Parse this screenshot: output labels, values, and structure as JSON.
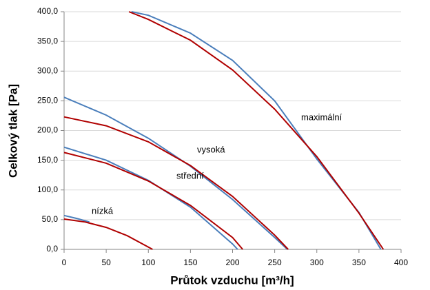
{
  "chart_data": {
    "type": "line",
    "xlabel": "Průtok vzduchu [m³/h]",
    "ylabel": "Celkový tlak [Pa]",
    "annotations": [
      "maximální",
      "vysoká",
      "střední",
      "nízká"
    ],
    "xlim": [
      0,
      400
    ],
    "xticks": [
      0,
      50,
      100,
      150,
      200,
      250,
      300,
      350,
      400
    ],
    "ylim": [
      0,
      400
    ],
    "yticks": [
      {
        "value": 0,
        "label": "0,0"
      },
      {
        "value": 50,
        "label": "50,0"
      },
      {
        "value": 100,
        "label": "100,0"
      },
      {
        "value": 150,
        "label": "150,0"
      },
      {
        "value": 200,
        "label": "200,0"
      },
      {
        "value": 250,
        "label": "250,0"
      },
      {
        "value": 300,
        "label": "300,0"
      },
      {
        "value": 350,
        "label": "350,0"
      },
      {
        "value": 400,
        "label": "400,0"
      }
    ],
    "grid": true,
    "series": [
      {
        "color": "#4a7ebb",
        "x": [
          80,
          100,
          150,
          200,
          250,
          300,
          350,
          376
        ],
        "values": [
          400,
          394,
          364,
          318,
          250,
          152,
          62,
          0
        ]
      },
      {
        "color": "#b00000",
        "x": [
          77,
          100,
          150,
          200,
          250,
          300,
          350,
          379
        ],
        "values": [
          400,
          387,
          352,
          302,
          236,
          156,
          61,
          0
        ]
      },
      {
        "color": "#4a7ebb",
        "x": [
          0,
          50,
          100,
          150,
          200,
          250,
          265
        ],
        "values": [
          256,
          226,
          187,
          140,
          84,
          20,
          0
        ]
      },
      {
        "color": "#b00000",
        "x": [
          0,
          50,
          100,
          150,
          200,
          250,
          266
        ],
        "values": [
          223,
          208,
          181,
          141,
          89,
          24,
          0
        ]
      },
      {
        "color": "#4a7ebb",
        "x": [
          0,
          50,
          100,
          150,
          200,
          206
        ],
        "values": [
          172,
          150,
          116,
          71,
          9,
          0
        ]
      },
      {
        "color": "#b00000",
        "x": [
          0,
          50,
          100,
          150,
          200,
          212
        ],
        "values": [
          163,
          145,
          115,
          74,
          20,
          0
        ]
      },
      {
        "color": "#4a7ebb",
        "x": [
          0,
          15,
          30
        ],
        "values": [
          57,
          52,
          46
        ]
      },
      {
        "color": "#b00000",
        "x": [
          0,
          25,
          50,
          75,
          105
        ],
        "values": [
          51,
          46,
          37,
          23,
          0
        ]
      }
    ]
  }
}
